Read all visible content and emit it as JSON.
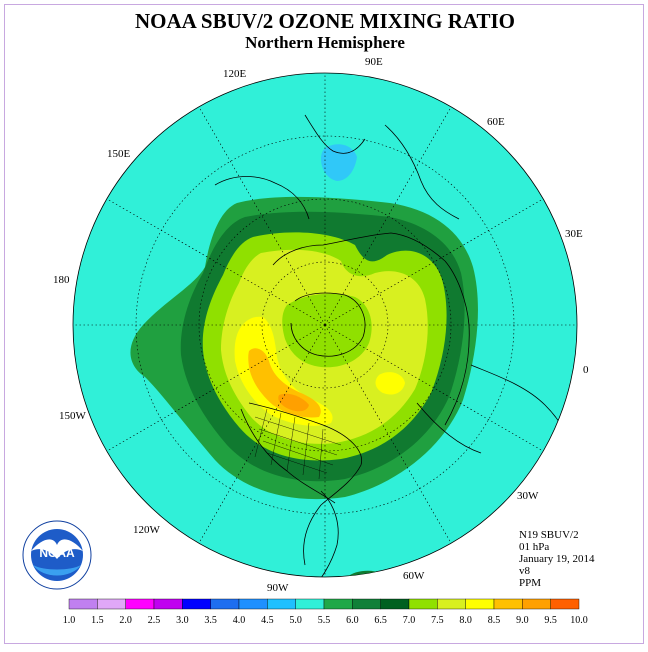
{
  "title": "NOAA SBUV/2 OZONE MIXING RATIO",
  "subtitle": "Northern Hemisphere",
  "longitude_labels": [
    "90E",
    "60E",
    "30E",
    "0",
    "30W",
    "60W",
    "90W",
    "120W",
    "150W",
    "180",
    "150E",
    "120E"
  ],
  "meta": {
    "instrument": "N19 SBUV/2",
    "level": "01 hPa",
    "date": "January 19, 2014",
    "version": "v8",
    "units": "PPM"
  },
  "logo_text": "NOAA",
  "legend": {
    "labels": [
      "1.0",
      "1.5",
      "2.0",
      "2.5",
      "3.0",
      "3.5",
      "4.0",
      "4.5",
      "5.0",
      "5.5",
      "6.0",
      "6.5",
      "7.0",
      "7.5",
      "8.0",
      "8.5",
      "9.0",
      "9.5",
      "10.0"
    ],
    "colors": [
      "#c080f0",
      "#e0a8f8",
      "#ff00ff",
      "#c000f0",
      "#0000ff",
      "#1e6ef0",
      "#1e90ff",
      "#20c0ff",
      "#30f0d8",
      "#20a848",
      "#108038",
      "#006020",
      "#90e000",
      "#d8f020",
      "#ffff00",
      "#ffc000",
      "#ffa000",
      "#ff6000",
      "#ff0000",
      "#c00000",
      "#8b5a3c"
    ]
  },
  "colors": {
    "background_fill": "#30f0d8",
    "band_55": "#20a040",
    "band_60": "#107a30",
    "band_65": "#90e000",
    "band_70": "#d8f020",
    "band_75": "#ffff00",
    "band_80": "#ffc000",
    "band_85": "#ffa000",
    "low_cyan": "#30c8f8"
  }
}
